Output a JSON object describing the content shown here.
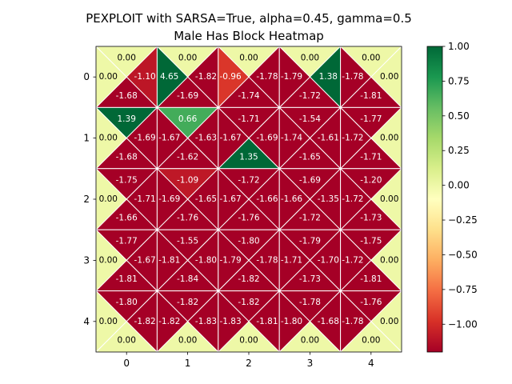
{
  "chart_data": {
    "type": "heatmap",
    "title_lines": [
      "PEXPLOIT with SARSA=True, alpha=0.45, gamma=0.5",
      "Male Has Block Heatmap"
    ],
    "xlabel": "",
    "ylabel": "",
    "x_ticks": [
      "0",
      "1",
      "2",
      "3",
      "4"
    ],
    "y_ticks": [
      "0",
      "1",
      "2",
      "3",
      "4"
    ],
    "cell_layout": "each grid cell split into four triangles: top, right, bottom, left",
    "cells": [
      [
        {
          "top": "0.00",
          "right": "-1.10",
          "bottom": "-1.68",
          "left": "0.00"
        },
        {
          "top": "0.00",
          "right": "-1.82",
          "bottom": "-1.69",
          "left": "4.65"
        },
        {
          "top": "0.00",
          "right": "-1.78",
          "bottom": "-1.74",
          "left": "-0.96"
        },
        {
          "top": "0.00",
          "right": "1.38",
          "bottom": "-1.72",
          "left": "-1.79"
        },
        {
          "top": "0.00",
          "right": "0.00",
          "bottom": "-1.81",
          "left": "-1.78"
        }
      ],
      [
        {
          "top": "1.39",
          "right": "-1.69",
          "bottom": "-1.68",
          "left": "0.00"
        },
        {
          "top": "0.66",
          "right": "-1.63",
          "bottom": "-1.62",
          "left": "-1.67"
        },
        {
          "top": "-1.71",
          "right": "-1.69",
          "bottom": "1.35",
          "left": "-1.67"
        },
        {
          "top": "-1.54",
          "right": "-1.61",
          "bottom": "-1.65",
          "left": "-1.74"
        },
        {
          "top": "-1.77",
          "right": "0.00",
          "bottom": "-1.71",
          "left": "-1.72"
        }
      ],
      [
        {
          "top": "-1.75",
          "right": "-1.71",
          "bottom": "-1.66",
          "left": "0.00"
        },
        {
          "top": "-1.09",
          "right": "-1.65",
          "bottom": "-1.76",
          "left": "-1.69"
        },
        {
          "top": "-1.72",
          "right": "-1.66",
          "bottom": "-1.76",
          "left": "-1.67"
        },
        {
          "top": "-1.69",
          "right": "-1.35",
          "bottom": "-1.72",
          "left": "-1.66"
        },
        {
          "top": "-1.20",
          "right": "0.00",
          "bottom": "-1.73",
          "left": "-1.72"
        }
      ],
      [
        {
          "top": "-1.77",
          "right": "-1.67",
          "bottom": "-1.81",
          "left": "0.00"
        },
        {
          "top": "-1.55",
          "right": "-1.80",
          "bottom": "-1.84",
          "left": "-1.81"
        },
        {
          "top": "-1.80",
          "right": "-1.78",
          "bottom": "-1.82",
          "left": "-1.79"
        },
        {
          "top": "-1.79",
          "right": "-1.70",
          "bottom": "-1.73",
          "left": "-1.71"
        },
        {
          "top": "-1.75",
          "right": "0.00",
          "bottom": "-1.81",
          "left": "-1.72"
        }
      ],
      [
        {
          "top": "-1.80",
          "right": "-1.82",
          "bottom": "0.00",
          "left": "0.00"
        },
        {
          "top": "-1.82",
          "right": "-1.83",
          "bottom": "0.00",
          "left": "-1.82"
        },
        {
          "top": "-1.82",
          "right": "-1.81",
          "bottom": "0.00",
          "left": "-1.83"
        },
        {
          "top": "-1.78",
          "right": "-1.68",
          "bottom": "0.00",
          "left": "-1.80"
        },
        {
          "top": "-1.76",
          "right": "0.00",
          "bottom": "0.00",
          "left": "-1.78"
        }
      ]
    ],
    "colorbar": {
      "colormap": "RdYlGn",
      "range": [
        -1.2,
        1.0
      ],
      "tick_values": [
        1.0,
        0.75,
        0.5,
        0.25,
        0.0,
        -0.25,
        -0.5,
        -0.75,
        -1.0
      ],
      "tick_labels": [
        "1.00",
        "0.75",
        "0.50",
        "0.25",
        "0.00",
        "−0.25",
        "−0.50",
        "−0.75",
        "−1.00"
      ]
    },
    "grid": false
  }
}
